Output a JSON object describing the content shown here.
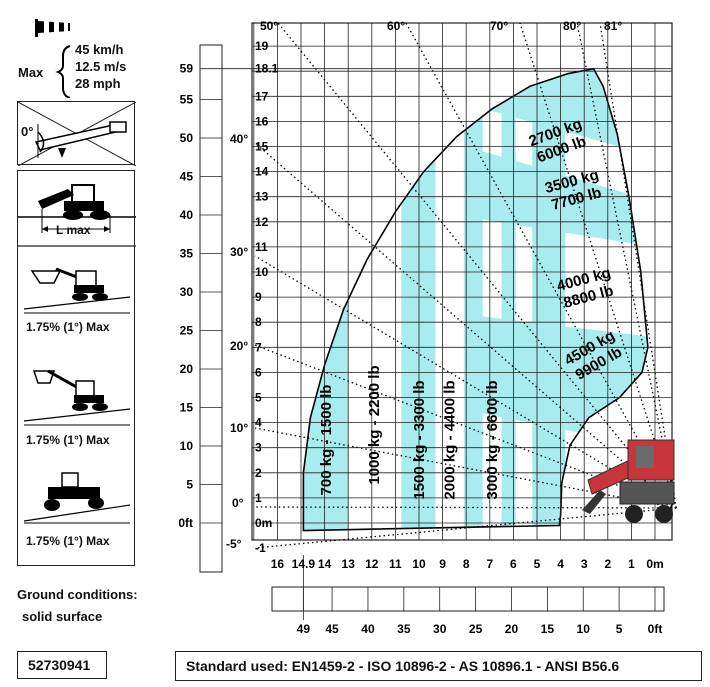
{
  "wind": {
    "max_label": "Max",
    "speeds": [
      "45 km/h",
      "12.5 m/s",
      "28 mph"
    ]
  },
  "left_panel": {
    "angle_label": "0°",
    "lmax_label": "L max",
    "slope_labels": [
      "1.75% (1°) Max",
      "1.75% (1°) Max",
      "1.75% (1°) Max"
    ]
  },
  "ground": {
    "title": "Ground conditions:",
    "value": "solid surface"
  },
  "footer": {
    "code": "52730941",
    "standard": "Standard used: EN1459-2 - ISO 10896-2 - AS 10896.1 - ANSI B56.6"
  },
  "colors": {
    "zone": "#a8ecef",
    "grid": "#222222"
  },
  "chart_data": {
    "type": "load chart",
    "height_m_ticks": [
      "0m",
      "1",
      "2",
      "3",
      "4",
      "5",
      "6",
      "7",
      "8",
      "9",
      "10",
      "11",
      "12",
      "13",
      "14",
      "15",
      "16",
      "17",
      "18.1",
      "19"
    ],
    "height_m_neg": "-1",
    "height_ft_ticks": [
      "0ft",
      "5",
      "10",
      "15",
      "20",
      "25",
      "30",
      "35",
      "40",
      "45",
      "50",
      "55",
      "59"
    ],
    "reach_m_ticks": [
      "16",
      "14.9",
      "14",
      "13",
      "12",
      "11",
      "10",
      "9",
      "8",
      "7",
      "6",
      "5",
      "4",
      "3",
      "2",
      "1",
      "0m"
    ],
    "reach_ft_ticks": [
      "49",
      "45",
      "40",
      "35",
      "30",
      "25",
      "20",
      "15",
      "10",
      "5",
      "0ft"
    ],
    "boom_angles": [
      "-5°",
      "0°",
      "10°",
      "20°",
      "30°",
      "40°",
      "50°",
      "60°",
      "70°",
      "80°",
      "81°"
    ],
    "max_height_m": 18.1,
    "max_reach_m": 14.9,
    "max_height_ft": 59,
    "max_reach_ft": 49,
    "load_zones": [
      {
        "label": "700 kg - 1500 lb",
        "kg": 700,
        "lb": 1500
      },
      {
        "label": "1000 kg - 2200 lb",
        "kg": 1000,
        "lb": 2200
      },
      {
        "label": "1500 kg - 3300 lb",
        "kg": 1500,
        "lb": 3300
      },
      {
        "label": "2000 kg - 4400 lb",
        "kg": 2000,
        "lb": 4400
      },
      {
        "label": "3000 kg - 6600 lb",
        "kg": 3000,
        "lb": 6600
      }
    ],
    "upper_zones": [
      {
        "kg": "2700 kg",
        "lb": "6000 lb"
      },
      {
        "kg": "3500 kg",
        "lb": "7700 lb"
      },
      {
        "kg": "4000 kg",
        "lb": "8800 lb"
      },
      {
        "kg": "4500 kg",
        "lb": "9900 lb"
      }
    ]
  }
}
